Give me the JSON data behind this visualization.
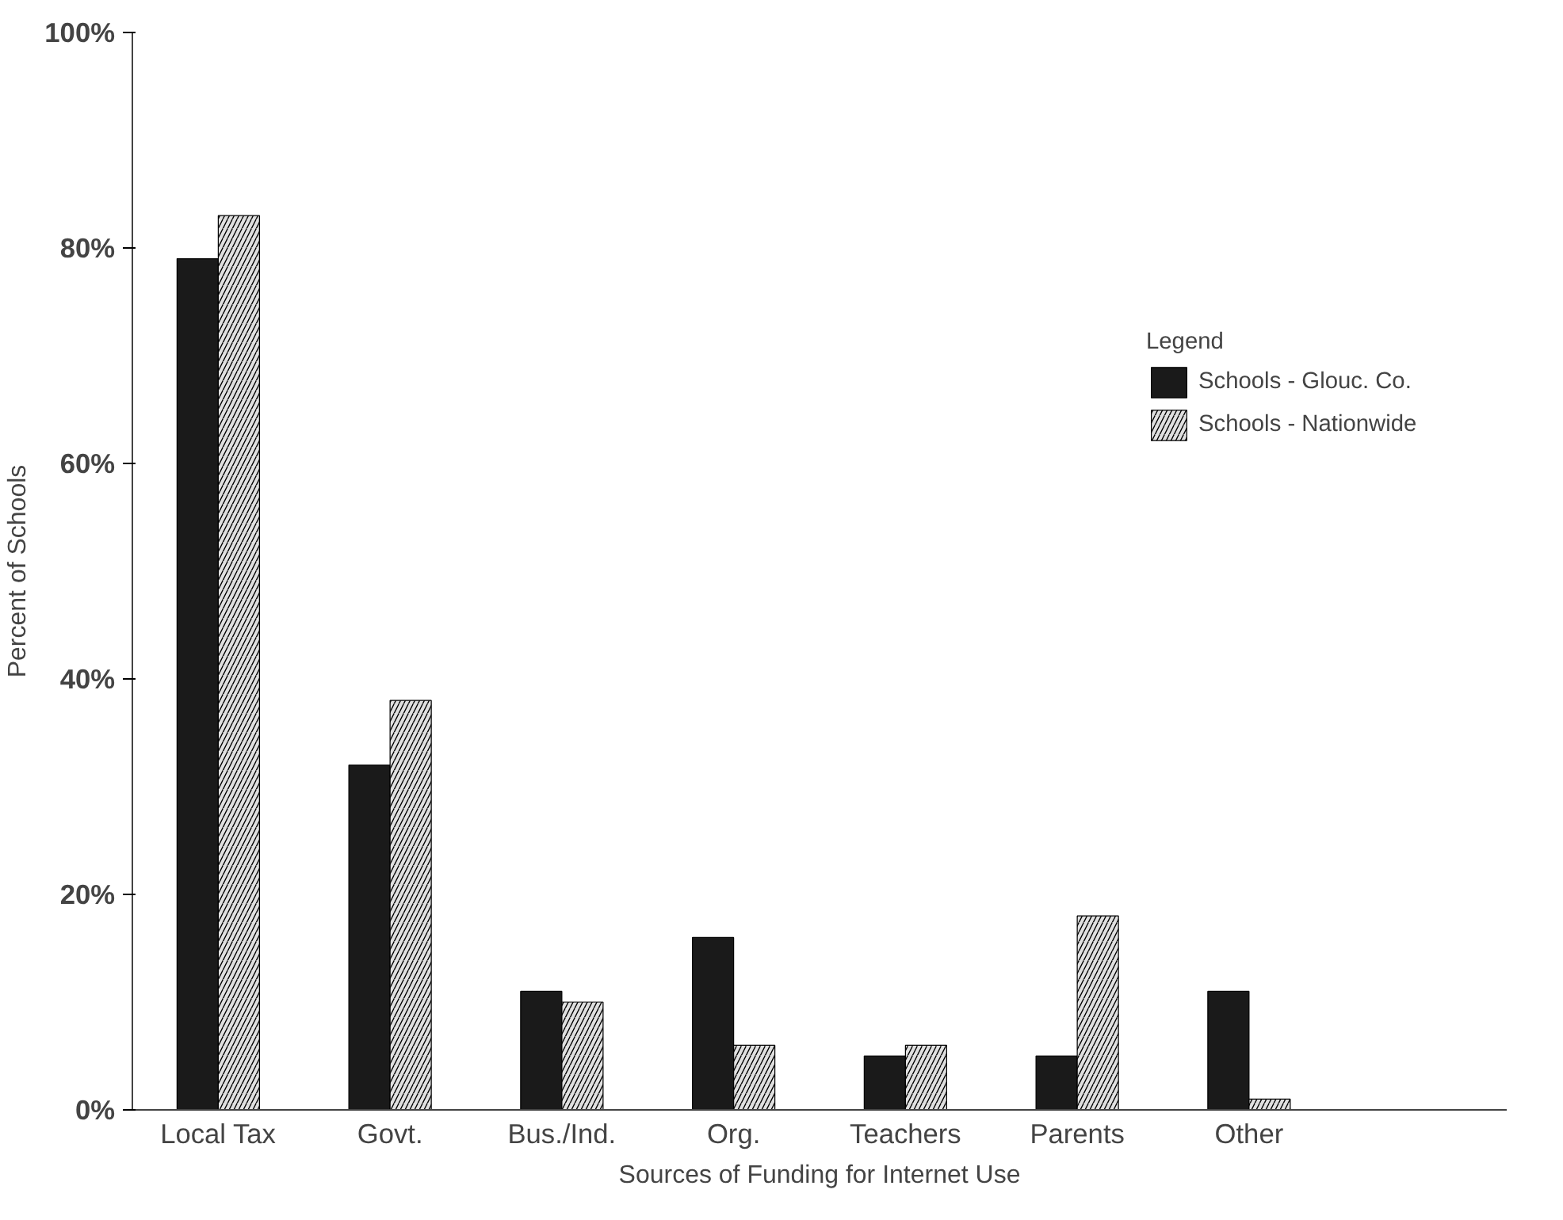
{
  "chart_data": {
    "type": "bar",
    "xlabel": "Sources of Funding for Internet Use",
    "ylabel": "Percent of Schools",
    "legend_title": "Legend",
    "categories": [
      "Local Tax",
      "Govt.",
      "Bus./Ind.",
      "Org.",
      "Teachers",
      "Parents",
      "Other",
      null
    ],
    "series": [
      {
        "name": "Schools - Glouc. Co.",
        "color": "#1a1a1a",
        "values": [
          79,
          32,
          11,
          16,
          5,
          5,
          11,
          null
        ]
      },
      {
        "name": "Schools - Nationwide",
        "color": "#e0e0e0",
        "values": [
          83,
          38,
          10,
          6,
          6,
          18,
          1,
          null
        ]
      }
    ],
    "ylim": [
      0,
      100
    ],
    "yticks": [
      {
        "value": 0,
        "label": "0%"
      },
      {
        "value": 20,
        "label": "20%"
      },
      {
        "value": 40,
        "label": "40%"
      },
      {
        "value": 60,
        "label": "60%"
      },
      {
        "value": 80,
        "label": "80%"
      },
      {
        "value": 100,
        "label": "100%"
      }
    ],
    "grid": false,
    "legend": "right"
  }
}
